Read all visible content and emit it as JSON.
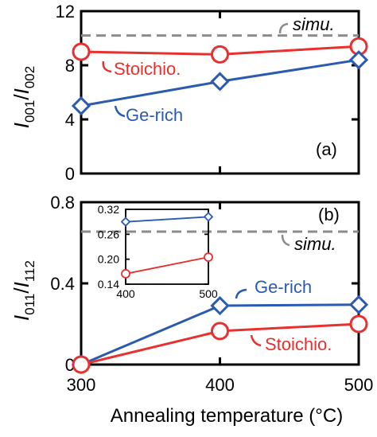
{
  "chart_data": [
    {
      "type": "line",
      "panel_label": "(a)",
      "ylabel": "I001/I002",
      "ylabel_parts": {
        "a": "I",
        "a_sub": "001",
        "slash": "/",
        "b": "I",
        "b_sub": "002"
      },
      "x": [
        300,
        400,
        500
      ],
      "xlim": [
        300,
        500
      ],
      "ylim": [
        0,
        12
      ],
      "yticks": [
        0,
        4,
        8,
        12
      ],
      "xticks": [
        300,
        400,
        500
      ],
      "series": [
        {
          "name": "Stoichio.",
          "color": "#e8302f",
          "marker": "circle",
          "values": [
            9.0,
            8.8,
            9.4
          ]
        },
        {
          "name": "Ge-rich",
          "color": "#2b5bb0",
          "marker": "diamond",
          "values": [
            5.0,
            6.8,
            8.4
          ]
        }
      ],
      "reference": {
        "label": "simu.",
        "value": 10.2,
        "style": "dashed",
        "color": "#8c8c8c"
      }
    },
    {
      "type": "line",
      "panel_label": "(b)",
      "ylabel": "I011/I112",
      "ylabel_parts": {
        "a": "I",
        "a_sub": "011",
        "slash": "/",
        "b": "I",
        "b_sub": "112"
      },
      "xlabel": "Annealing temperature (°C)",
      "x": [
        300,
        400,
        500
      ],
      "xlim": [
        300,
        500
      ],
      "ylim": [
        0,
        0.8
      ],
      "yticks": [
        "0",
        "0.4",
        "0.8"
      ],
      "ytick_values": [
        0,
        0.4,
        0.8
      ],
      "xticks": [
        "300",
        "400",
        "500"
      ],
      "series": [
        {
          "name": "Ge-rich",
          "color": "#2b5bb0",
          "marker": "diamond",
          "values": [
            0.0,
            0.29,
            0.295
          ]
        },
        {
          "name": "Stoichio.",
          "color": "#e8302f",
          "marker": "circle",
          "values": [
            0.0,
            0.165,
            0.2
          ]
        }
      ],
      "reference": {
        "label": "simu.",
        "value": 0.655,
        "style": "dashed",
        "color": "#8c8c8c"
      },
      "inset": {
        "x": [
          400,
          500
        ],
        "xlim": [
          400,
          500
        ],
        "ylim": [
          0.14,
          0.32
        ],
        "xticks": [
          "400",
          "500"
        ],
        "yticks": [
          "0.14",
          "0.20",
          "0.26",
          "0.32"
        ],
        "ytick_values": [
          0.14,
          0.2,
          0.26,
          0.32
        ],
        "series": [
          {
            "name": "Ge-rich",
            "color": "#2b5bb0",
            "marker": "diamond",
            "values": [
              0.29,
              0.302
            ]
          },
          {
            "name": "Stoichio.",
            "color": "#e8302f",
            "marker": "circle",
            "values": [
              0.165,
              0.205
            ]
          }
        ]
      }
    }
  ]
}
